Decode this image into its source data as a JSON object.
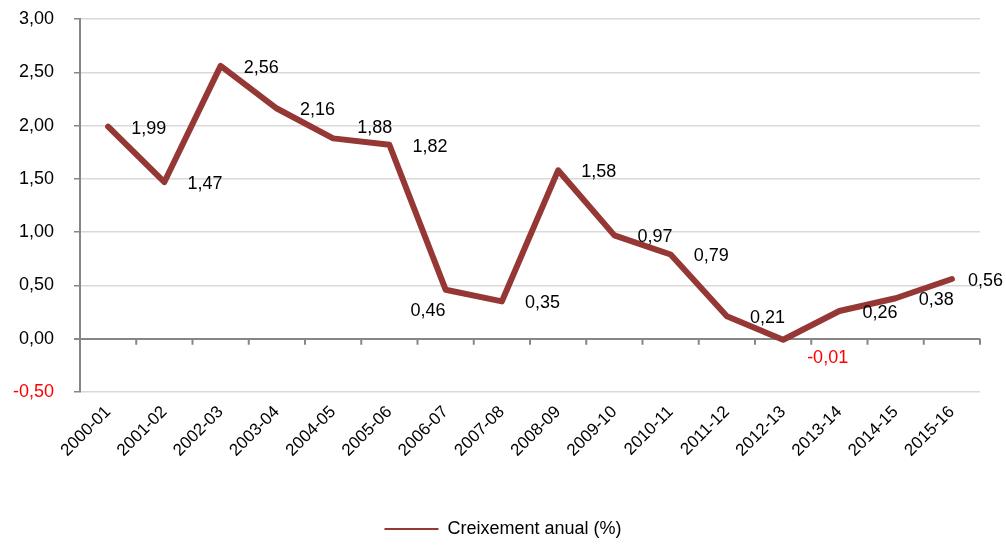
{
  "chart_data": {
    "type": "line",
    "categories": [
      "2000-01",
      "2001-02",
      "2002-03",
      "2003-04",
      "2004-05",
      "2005-06",
      "2006-07",
      "2007-08",
      "2008-09",
      "2009-10",
      "2010-11",
      "2011-12",
      "2012-13",
      "2013-14",
      "2014-15",
      "2015-16"
    ],
    "series": [
      {
        "name": "Creixement anual (%)",
        "color": "#953735",
        "values": [
          1.99,
          1.47,
          2.56,
          2.16,
          1.88,
          1.82,
          0.46,
          0.35,
          1.58,
          0.97,
          0.79,
          0.21,
          -0.01,
          0.26,
          0.38,
          0.56
        ],
        "value_labels": [
          "1,99",
          "1,47",
          "2,56",
          "2,16",
          "1,88",
          "1,82",
          "0,46",
          "0,35",
          "1,58",
          "0,97",
          "0,79",
          "0,21",
          "-0,01",
          "0,26",
          "0,38",
          "0,56"
        ]
      }
    ],
    "ylim": [
      -0.5,
      3
    ],
    "yticks": [
      {
        "value": -0.5,
        "label": "-0,50"
      },
      {
        "value": 0,
        "label": "0,00"
      },
      {
        "value": 0.5,
        "label": "0,50"
      },
      {
        "value": 1,
        "label": "1,00"
      },
      {
        "value": 1.5,
        "label": "1,50"
      },
      {
        "value": 2,
        "label": "2,00"
      },
      {
        "value": 2.5,
        "label": "2,50"
      },
      {
        "value": 3,
        "label": "3,00"
      }
    ],
    "grid": "y",
    "legend": "bottom",
    "marker": "none",
    "line_style": "solid"
  }
}
